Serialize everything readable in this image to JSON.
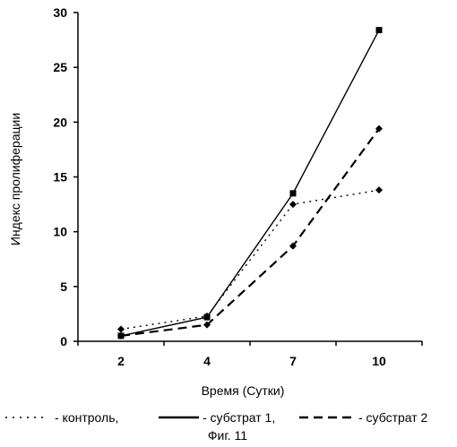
{
  "chart_data": {
    "type": "line",
    "categories": [
      "2",
      "4",
      "7",
      "10"
    ],
    "xlabel": "Время (Сутки)",
    "ylabel": "Индекс пролиферации",
    "ylim": [
      0,
      30
    ],
    "yticks": [
      0,
      5,
      10,
      15,
      20,
      25,
      30
    ],
    "grid": false,
    "legend_position": "bottom",
    "series": [
      {
        "name": "- контроль,",
        "style": "dotted",
        "marker": "diamond",
        "color": "#000000",
        "values": [
          1.1,
          2.3,
          12.5,
          13.8
        ]
      },
      {
        "name": "- субстрат 1,",
        "style": "solid",
        "marker": "square",
        "color": "#000000",
        "values": [
          0.5,
          2.2,
          13.5,
          28.4
        ]
      },
      {
        "name": "- субстрат 2",
        "style": "dashed",
        "marker": "diamond",
        "color": "#000000",
        "values": [
          0.5,
          1.5,
          8.7,
          19.4
        ]
      }
    ],
    "caption": "Фиг. 11"
  }
}
